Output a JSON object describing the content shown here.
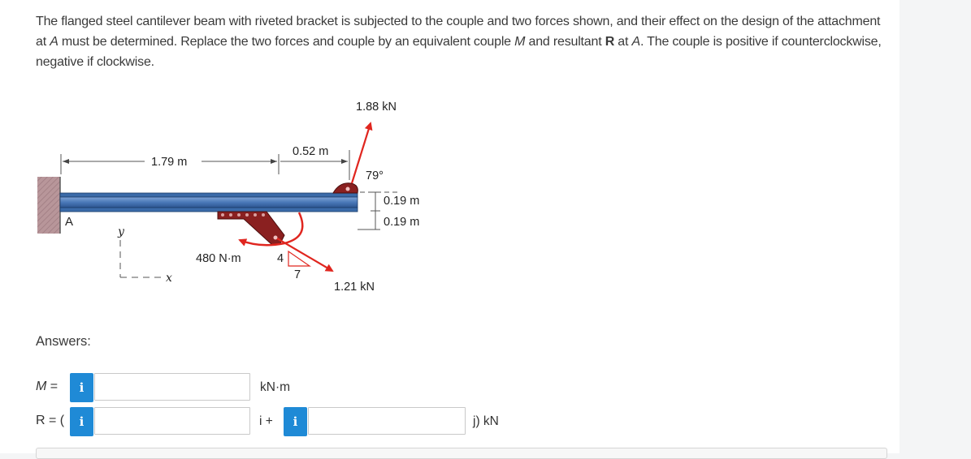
{
  "problem": {
    "s1": "The flanged steel cantilever beam with riveted bracket is subjected to the couple and two forces shown, and their effect on the design of the attachment at ",
    "s2": "A",
    "s3": " must be determined. Replace the two forces and couple by an equivalent couple ",
    "s4": "M",
    "s5": " and resultant ",
    "s6": "R",
    "s7": " at ",
    "s8": "A",
    "s9": ". The couple is positive if counterclockwise, negative if clockwise."
  },
  "figure": {
    "force_top": "1.88 kN",
    "force_bottom": "1.21 kN",
    "couple": "480 N·m",
    "dim_span": "1.79 m",
    "dim_short": "0.52 m",
    "angle": "79°",
    "offset_top": "0.19 m",
    "offset_bottom": "0.19 m",
    "slope_rise": "4",
    "slope_run": "7",
    "support_label": "A",
    "axis_y": "y",
    "axis_x": "x"
  },
  "answers": {
    "heading": "Answers:",
    "m_label_var": "M",
    "m_label_eq": " =",
    "m_info": "i",
    "m_value": "",
    "m_unit": "kN·m",
    "r_label": "R = (",
    "r_info_i": "i",
    "r_i_value": "",
    "r_i_sep": "i +",
    "r_info_j": "i",
    "r_j_value": "",
    "r_unit": "j) kN"
  },
  "colors": {
    "beam": "#4a78b8",
    "bracket": "#8a2020",
    "arrow": "#e0261f",
    "wall": "#b8969a",
    "info_button": "#1f8ad6"
  }
}
